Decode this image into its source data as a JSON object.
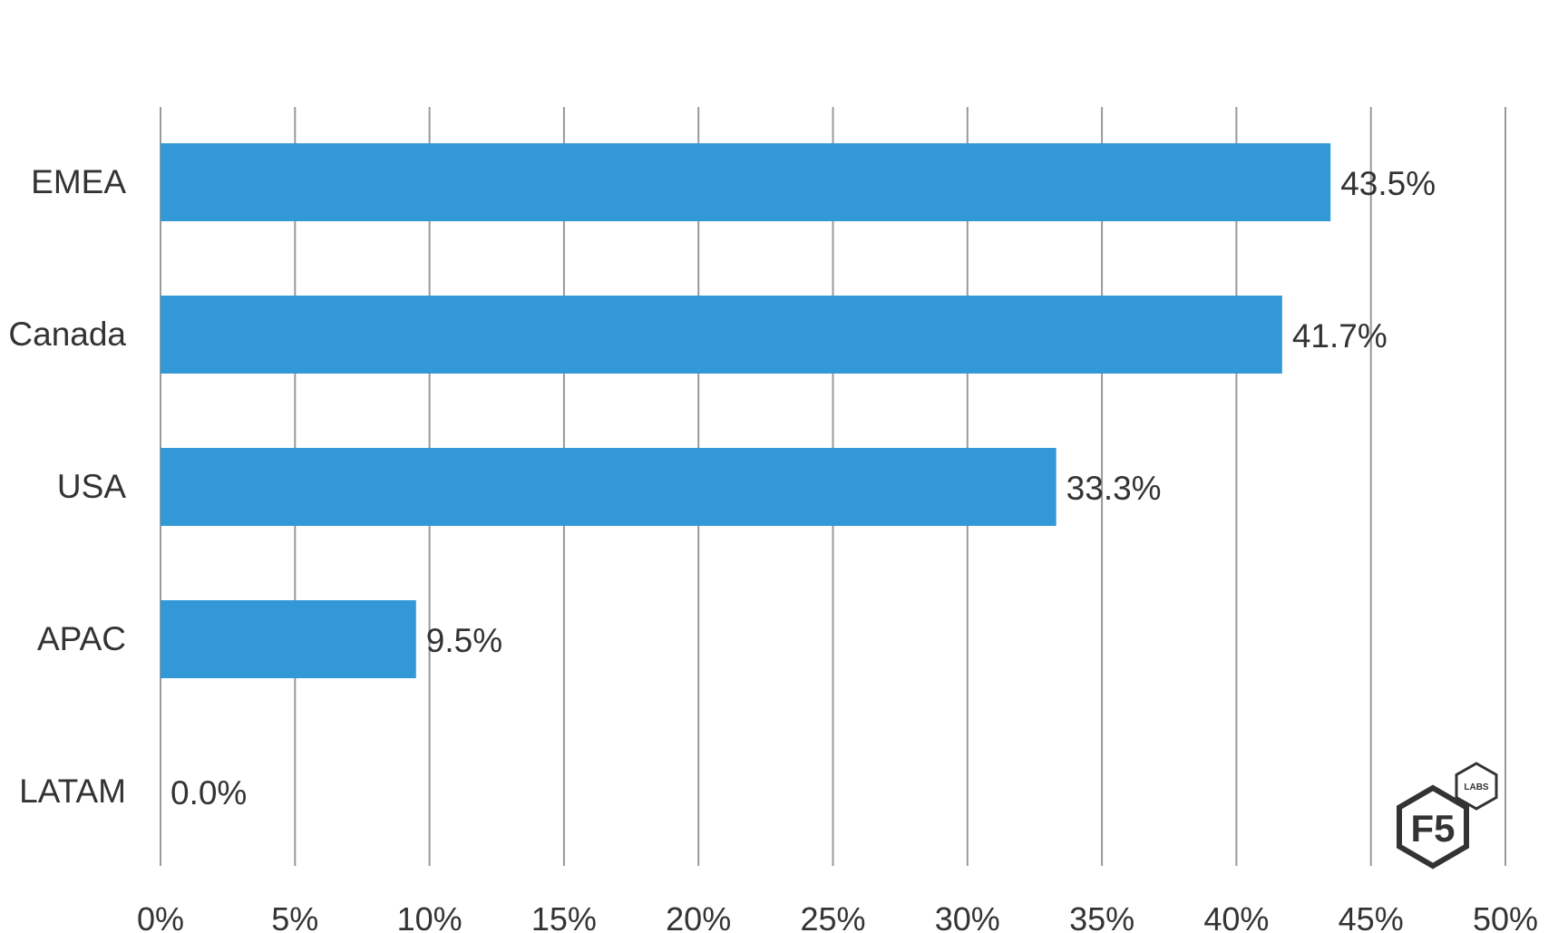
{
  "chart_data": {
    "type": "bar",
    "orientation": "horizontal",
    "categories": [
      "EMEA",
      "Canada",
      "USA",
      "APAC",
      "LATAM"
    ],
    "values": [
      43.5,
      41.7,
      33.3,
      9.5,
      0.0
    ],
    "value_labels": [
      "43.5%",
      "41.7%",
      "33.3%",
      "9.5%",
      "0.0%"
    ],
    "xlim": [
      0,
      50
    ],
    "xticks": [
      0,
      5,
      10,
      15,
      20,
      25,
      30,
      35,
      40,
      45,
      50
    ],
    "xtick_labels": [
      "0%",
      "5%",
      "10%",
      "15%",
      "20%",
      "25%",
      "30%",
      "35%",
      "40%",
      "45%",
      "50%"
    ],
    "grid": "vertical",
    "bar_color": "#3399d6",
    "title": "",
    "xlabel": "",
    "ylabel": ""
  },
  "logo": {
    "main_text": "F5",
    "badge_text": "LABS",
    "color": "#333333"
  }
}
